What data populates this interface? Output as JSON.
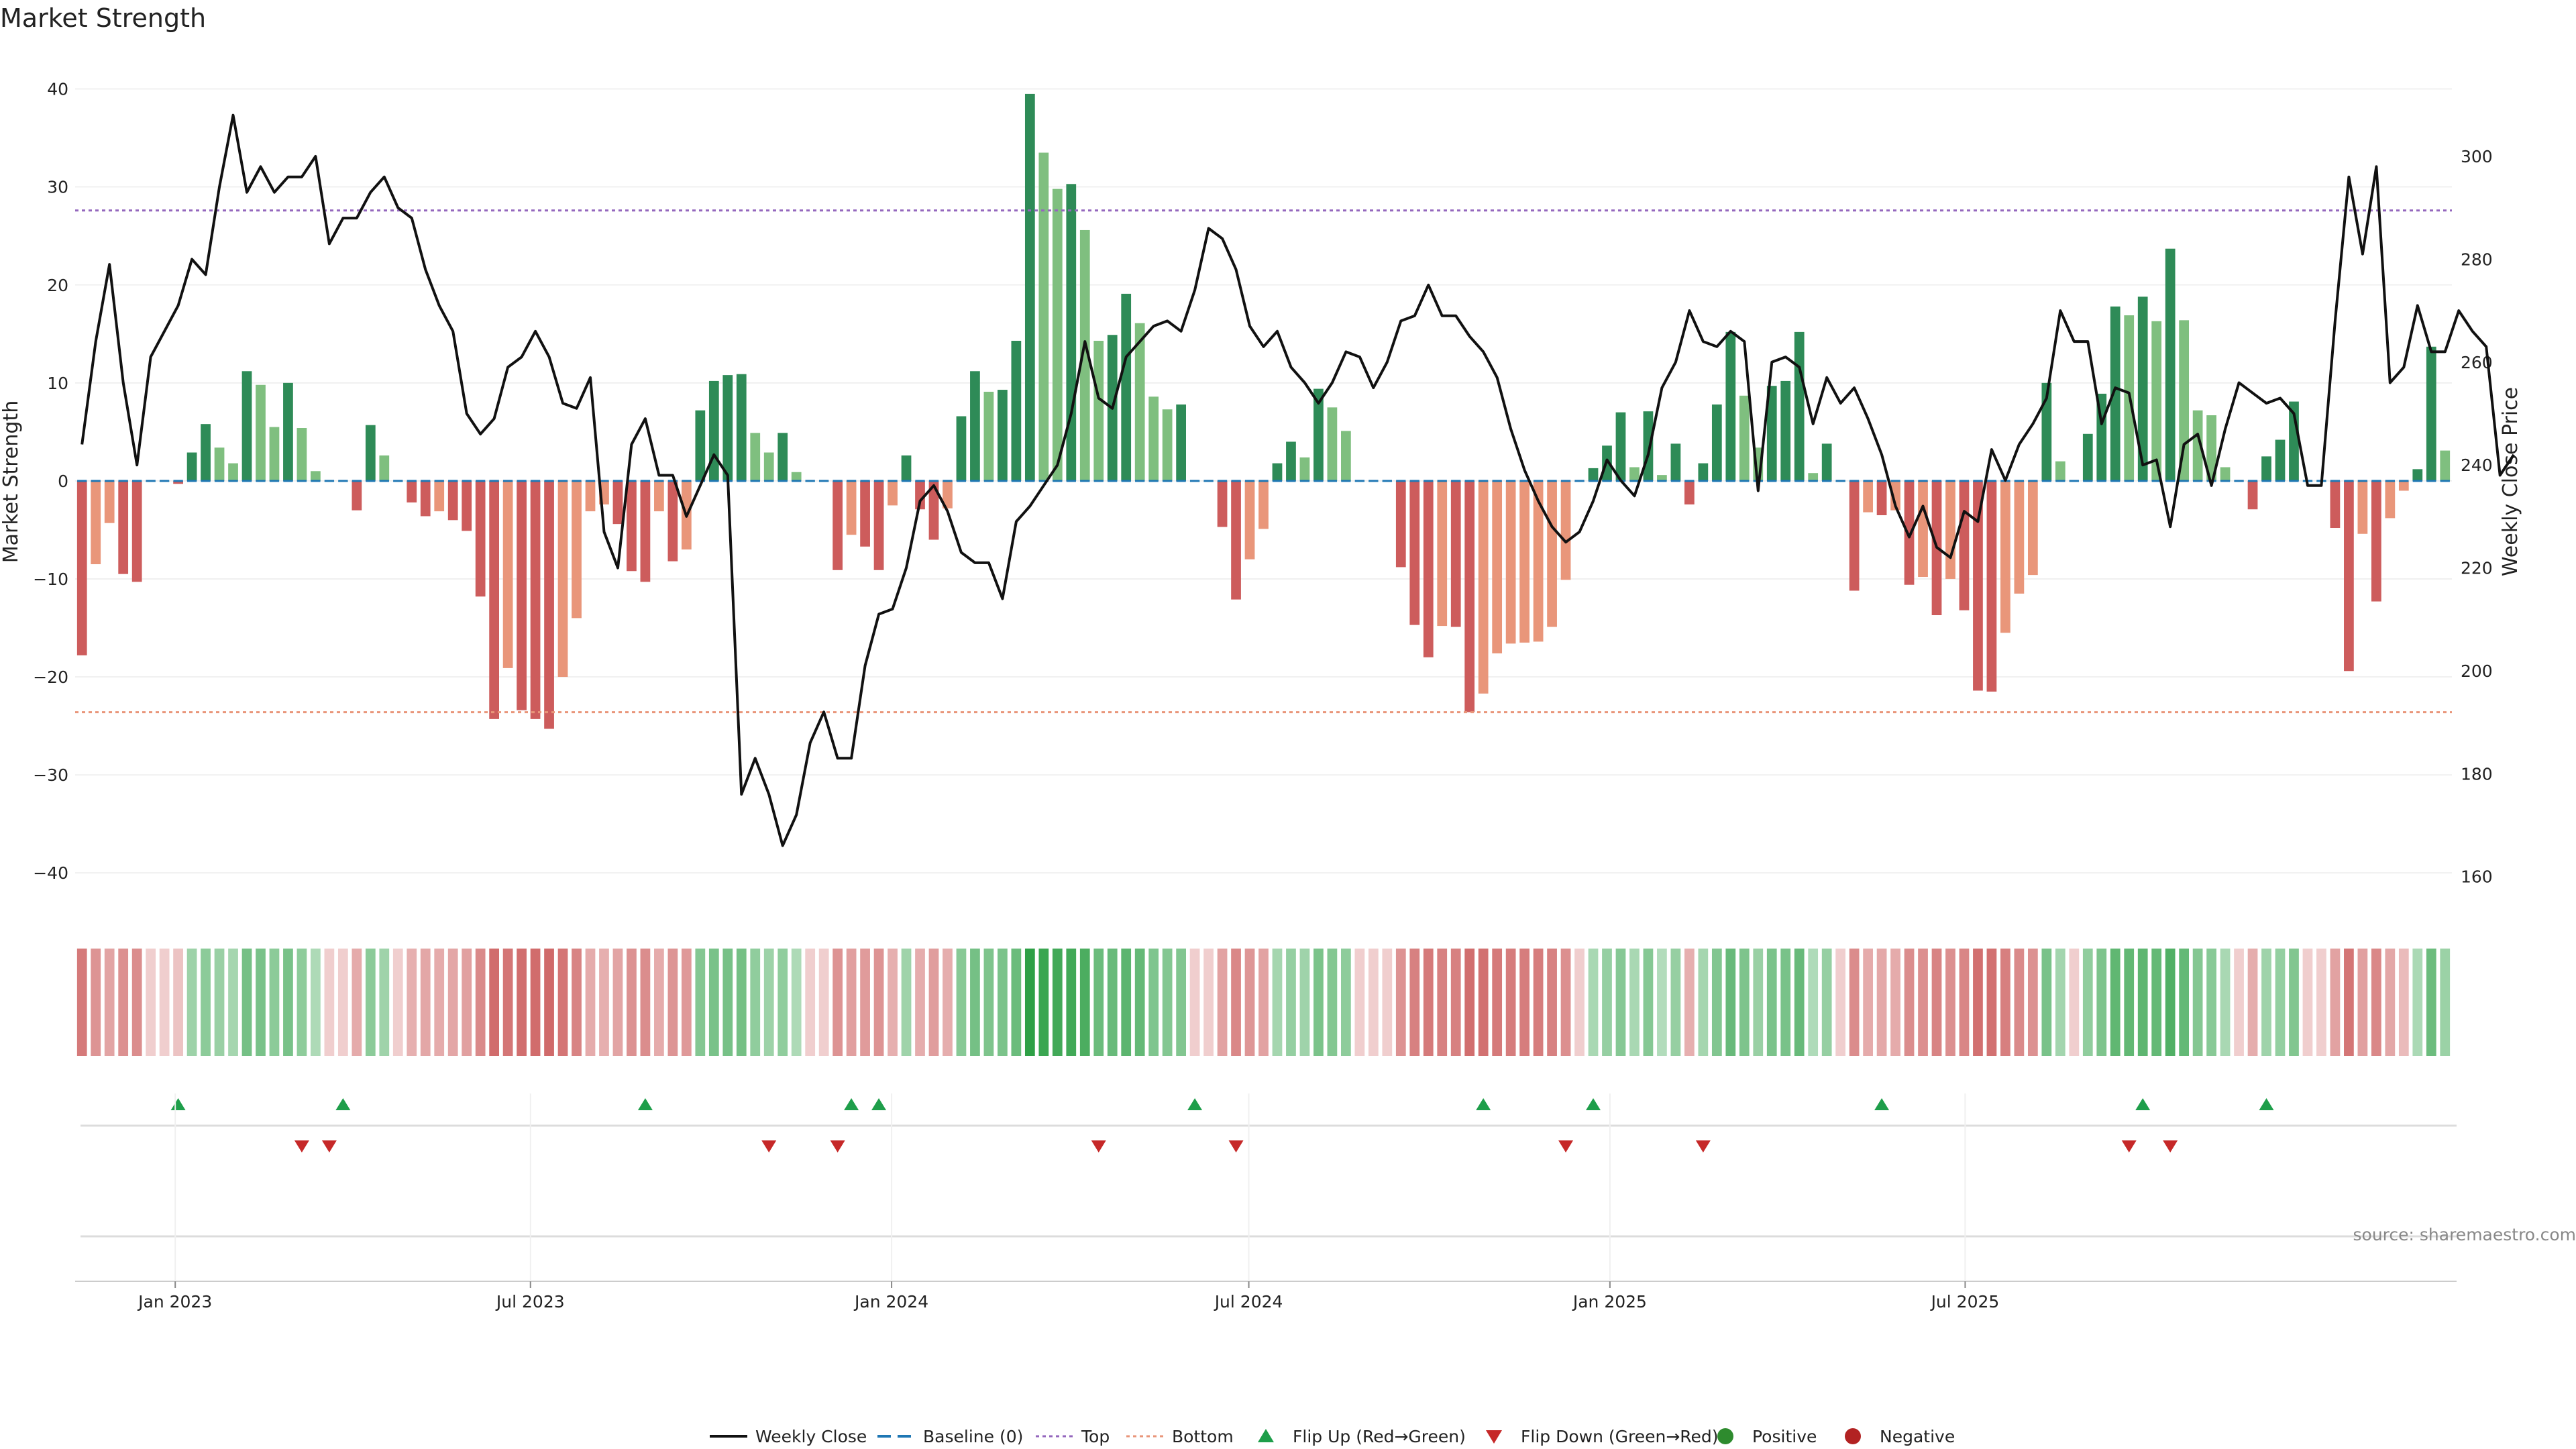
{
  "title": "Market Strength",
  "source": "source: sharemaestro.com",
  "colors": {
    "dark_green": "#2e8b57",
    "light_green": "#7fbf7f",
    "dark_red": "#cd5c5c",
    "light_red": "#e9967a",
    "price_line": "#111111",
    "baseline": "#1f77b4",
    "top": "#9467bd",
    "bottom": "#e9967a",
    "flip_up": "#1e9e4a",
    "flip_down": "#c62828",
    "positive": "#2e8b2e",
    "negative": "#b22222"
  },
  "legend": [
    {
      "label": "Weekly Close",
      "kind": "line",
      "color": "#111111"
    },
    {
      "label": "Baseline (0)",
      "kind": "dash",
      "color": "#1f77b4"
    },
    {
      "label": "Top",
      "kind": "dot",
      "color": "#9467bd"
    },
    {
      "label": "Bottom",
      "kind": "dot",
      "color": "#e9967a"
    },
    {
      "label": "Flip Up (Red→Green)",
      "kind": "tri-up",
      "color": "#1e9e4a"
    },
    {
      "label": "Flip Down (Green→Red)",
      "kind": "tri-down",
      "color": "#c62828"
    },
    {
      "label": "Positive",
      "kind": "circle",
      "color": "#2e8b2e"
    },
    {
      "label": "Negative",
      "kind": "circle",
      "color": "#b22222"
    }
  ],
  "chart_data": {
    "type": "bar",
    "x_start": "2022-11-11",
    "x_step_days": 7,
    "x_ticks": [
      "Jan 2023",
      "Jul 2023",
      "Jan 2024",
      "Jul 2024",
      "Jan 2025",
      "Jul 2025"
    ],
    "ylabel_left": "Market Strength",
    "ylabel_right": "Weekly Close Price",
    "ylim_left": [
      -43,
      41
    ],
    "yticks_left": [
      40,
      30,
      20,
      10,
      0,
      -10,
      -20,
      -30,
      -40
    ],
    "ylim_right": [
      155,
      315
    ],
    "yticks_right": [
      300,
      280,
      260,
      240,
      220,
      200,
      180,
      160
    ],
    "top_threshold": 27.6,
    "bottom_threshold": -23.6,
    "strength": [
      -17.8,
      -8.5,
      -4.3,
      -9.5,
      -10.3,
      0,
      0,
      -0.3,
      2.9,
      5.8,
      3.4,
      1.8,
      11.2,
      9.8,
      5.5,
      10,
      5.4,
      1,
      0,
      0,
      -3,
      5.7,
      2.6,
      0,
      -2.2,
      -3.6,
      -3.1,
      -4,
      -5.1,
      -11.8,
      -24.3,
      -19.1,
      -23.4,
      -24.3,
      -25.3,
      -20,
      -14,
      -3.1,
      -2.4,
      -4.4,
      -9.2,
      -10.3,
      -3.1,
      -8.2,
      -7,
      7.2,
      10.2,
      10.8,
      10.9,
      4.9,
      2.9,
      4.9,
      0.9,
      0,
      0,
      -9.1,
      -5.5,
      -6.7,
      -9.1,
      -2.5,
      2.6,
      -2.9,
      -6,
      -2.8,
      6.6,
      11.2,
      9.1,
      9.3,
      14.3,
      39.5,
      33.5,
      29.8,
      30.3,
      25.6,
      14.3,
      14.9,
      19.1,
      16.1,
      8.6,
      7.3,
      7.8,
      0,
      0,
      -4.7,
      -12.1,
      -8,
      -4.9,
      1.8,
      4,
      2.4,
      9.4,
      7.5,
      5.1,
      0,
      0,
      0,
      -8.8,
      -14.7,
      -18,
      -14.8,
      -14.9,
      -23.6,
      -21.7,
      -17.6,
      -16.6,
      -16.5,
      -16.4,
      -14.9,
      -10.1,
      0,
      1.3,
      3.6,
      7,
      1.4,
      7.1,
      0.6,
      3.8,
      -2.4,
      1.8,
      7.8,
      15.2,
      8.7,
      3.4,
      9.7,
      10.2,
      15.2,
      0.8,
      3.8,
      0,
      -11.2,
      -3.2,
      -3.5,
      -3,
      -10.6,
      -9.8,
      -13.7,
      -10,
      -13.2,
      -21.4,
      -21.5,
      -15.5,
      -11.5,
      -9.6,
      10,
      2,
      0,
      4.8,
      8.9,
      17.8,
      16.9,
      18.8,
      16.3,
      23.7,
      16.4,
      7.2,
      6.7,
      1.4,
      0,
      -2.9,
      2.5,
      4.2,
      8.1,
      0,
      0,
      -4.8,
      -19.4,
      -5.4,
      -12.3,
      -3.8,
      -1,
      1.2,
      13.7,
      3.1
    ],
    "price": [
      244,
      264,
      279,
      256,
      240,
      261,
      266,
      271,
      280,
      277,
      294,
      308,
      293,
      298,
      293,
      296,
      296,
      300,
      283,
      288,
      288,
      293,
      296,
      290,
      288,
      278,
      271,
      266,
      250,
      246,
      249,
      259,
      261,
      266,
      261,
      252,
      251,
      257,
      227,
      220,
      244,
      249,
      238,
      238,
      230,
      236,
      242,
      238,
      176,
      183,
      176,
      166,
      172,
      186,
      192,
      183,
      183,
      201,
      211,
      212,
      220,
      233,
      236,
      231,
      223,
      221,
      221,
      214,
      229,
      232,
      236,
      240,
      250,
      264,
      253,
      251,
      261,
      264,
      267,
      268,
      266,
      274,
      286,
      284,
      278,
      267,
      263,
      266,
      259,
      256,
      252,
      256,
      262,
      261,
      255,
      260,
      268,
      269,
      275,
      269,
      269,
      265,
      262,
      257,
      247,
      239,
      233,
      228,
      225,
      227,
      233,
      241,
      237,
      234,
      242,
      255,
      260,
      270,
      264,
      263,
      266,
      264,
      235,
      260,
      261,
      259,
      248,
      257,
      252,
      255,
      249,
      242,
      232,
      226,
      232,
      224,
      222,
      231,
      229,
      243,
      237,
      244,
      248,
      253,
      270,
      264,
      264,
      248,
      255,
      254,
      240,
      241,
      228,
      244,
      246,
      236,
      247,
      256,
      254,
      252,
      253,
      250,
      236,
      236,
      268,
      296,
      281,
      298,
      256,
      259,
      271,
      262,
      262,
      270,
      266,
      263,
      238,
      242
    ],
    "flip_up": [
      "2022-12-30",
      "2023-03-24",
      "2023-08-25",
      "2023-12-08",
      "2023-12-22",
      "2024-05-31",
      "2024-10-25",
      "2024-12-20",
      "2025-05-16",
      "2025-09-26",
      "2025-11-28"
    ],
    "flip_down": [
      "2023-03-03",
      "2023-03-17",
      "2023-10-27",
      "2023-12-01",
      "2024-04-12",
      "2024-06-21",
      "2024-12-06",
      "2025-02-14",
      "2025-09-19",
      "2025-10-10"
    ]
  }
}
